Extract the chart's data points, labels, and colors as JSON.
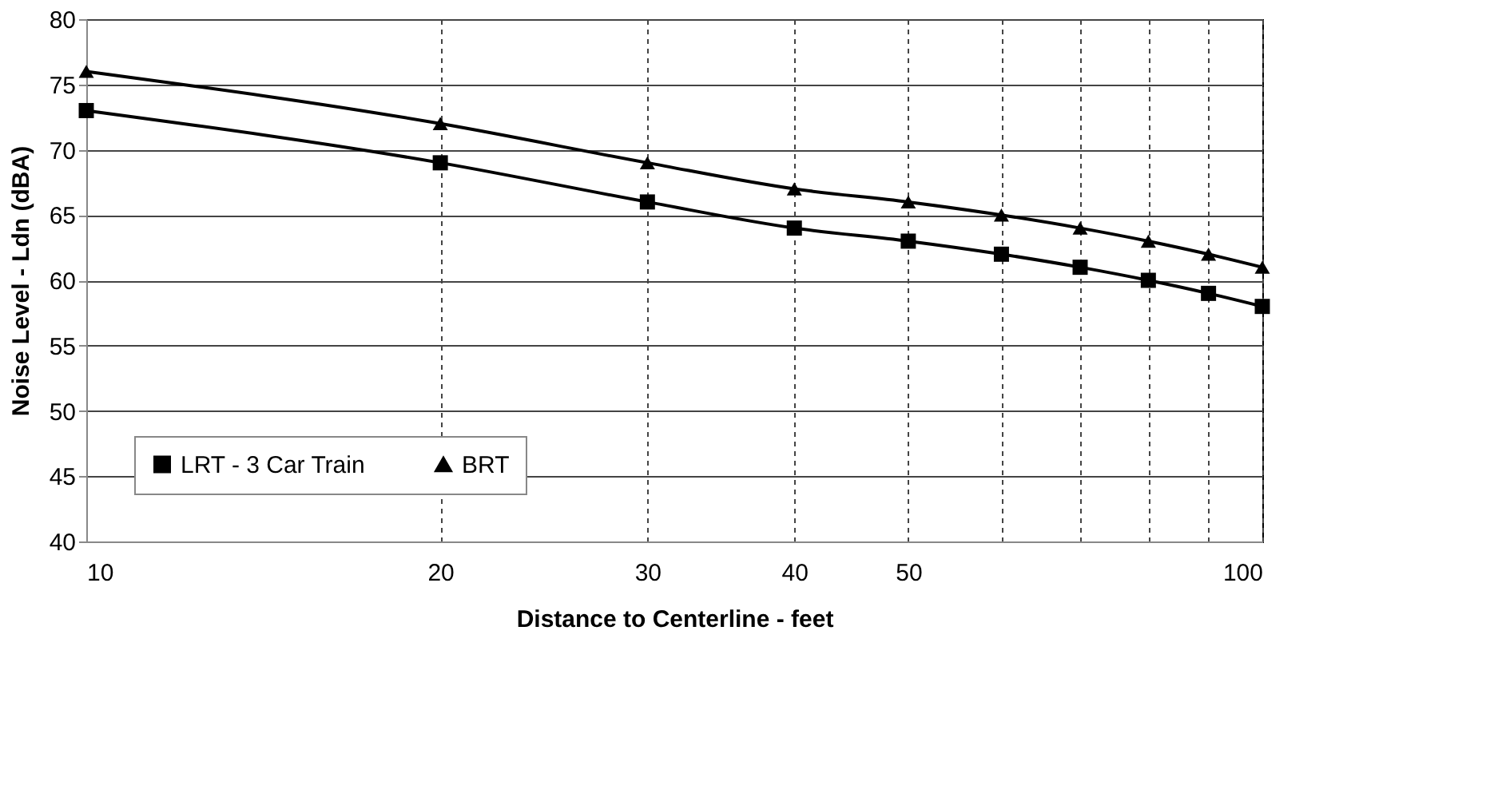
{
  "chart_data": {
    "type": "line",
    "xlabel": "Distance to Centerline - feet",
    "ylabel": "Noise Level - Ldn (dBA)",
    "x": [
      10,
      20,
      30,
      40,
      50,
      60,
      70,
      80,
      90,
      100
    ],
    "series": [
      {
        "name": "LRT - 3 Car Train",
        "color": "#000000",
        "marker": "square",
        "values": [
          73,
          69,
          66,
          64,
          63,
          62,
          61,
          60,
          59,
          58
        ]
      },
      {
        "name": "BRT",
        "color": "#000000",
        "marker": "triangle",
        "values": [
          76,
          72,
          69,
          67,
          66,
          65,
          64,
          63,
          62,
          61
        ]
      }
    ],
    "log": "x",
    "xlim": [
      10,
      100
    ],
    "xticks": [
      10,
      20,
      30,
      40,
      50,
      {
        "value": 60,
        "label": null
      },
      {
        "value": 70,
        "label": null
      },
      {
        "value": 80,
        "label": null
      },
      {
        "value": 90,
        "label": null
      },
      100
    ],
    "ylim": [
      40,
      80
    ],
    "yticks": [
      40,
      45,
      50,
      55,
      60,
      65,
      70,
      75,
      80
    ],
    "grid": true,
    "legend": "bottom left",
    "line_style": "solid"
  }
}
